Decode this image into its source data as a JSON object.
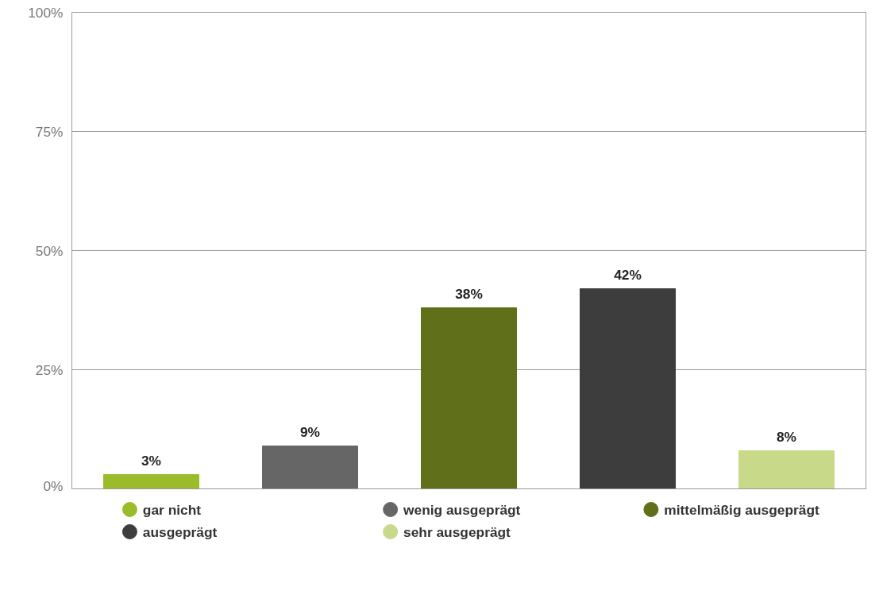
{
  "chart_data": {
    "type": "bar",
    "categories": [
      null,
      null,
      null,
      null,
      null
    ],
    "series": [
      {
        "name": "gar nicht",
        "color": "#9bbb2a",
        "values": [
          3,
          null,
          null,
          null,
          null
        ],
        "value_labels": [
          "3%",
          null,
          null,
          null,
          null
        ]
      },
      {
        "name": "wenig ausgeprägt",
        "color": "#666666",
        "values": [
          null,
          9,
          null,
          null,
          null
        ],
        "value_labels": [
          null,
          "9%",
          null,
          null,
          null
        ]
      },
      {
        "name": "mittelmäßig ausgeprägt",
        "color": "#5f6f1a",
        "values": [
          null,
          null,
          38,
          null,
          null
        ],
        "value_labels": [
          null,
          null,
          "38%",
          null,
          null
        ]
      },
      {
        "name": "ausgeprägt",
        "color": "#3d3d3d",
        "values": [
          null,
          null,
          null,
          42,
          null
        ],
        "value_labels": [
          null,
          null,
          null,
          "42%",
          null
        ]
      },
      {
        "name": "sehr ausgeprägt",
        "color": "#c9d98a",
        "values": [
          null,
          null,
          null,
          null,
          8
        ],
        "value_labels": [
          null,
          null,
          null,
          null,
          "8%"
        ]
      }
    ],
    "ylim": [
      0,
      100
    ],
    "yticks": [
      {
        "value": 0,
        "label": "0%"
      },
      {
        "value": 25,
        "label": "25%"
      },
      {
        "value": 50,
        "label": "50%"
      },
      {
        "value": 75,
        "label": "75%"
      },
      {
        "value": 100,
        "label": "100%"
      }
    ],
    "grid": "y",
    "legend": "bottom",
    "tick_labels": "y"
  }
}
